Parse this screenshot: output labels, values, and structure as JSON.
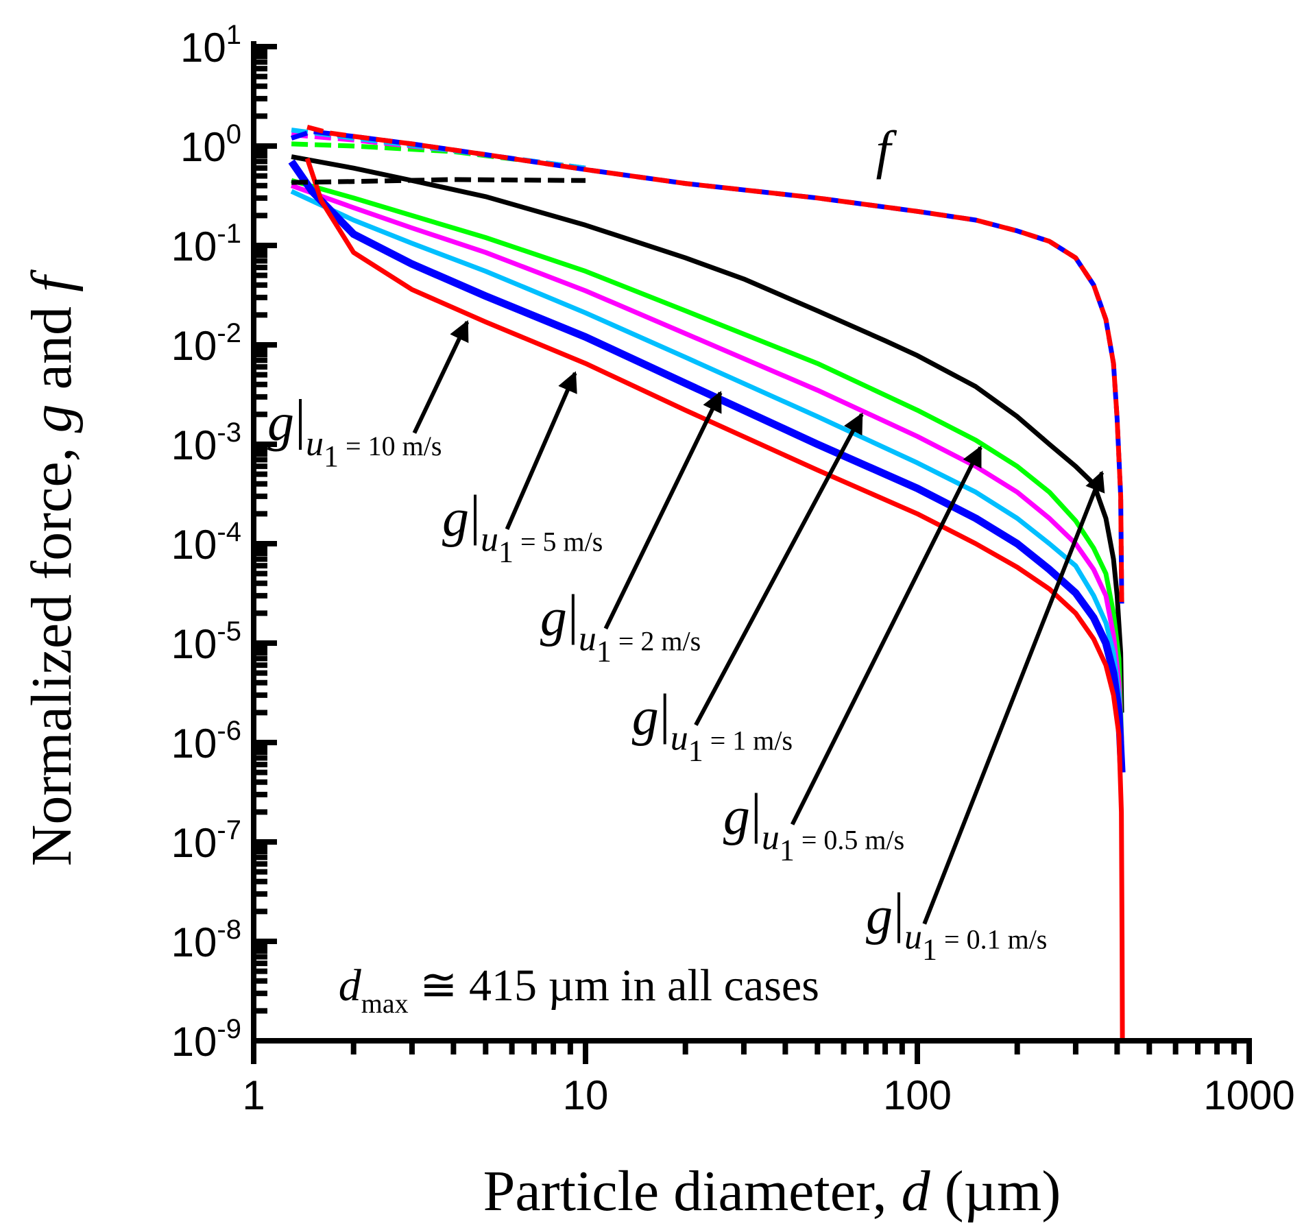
{
  "chart_data": {
    "type": "line",
    "xscale": "log",
    "yscale": "log",
    "xlim": [
      1,
      1000
    ],
    "ylim_exponents": [
      -9,
      1
    ],
    "xlabel": {
      "prefix": "Particle diameter, ",
      "var": "d",
      "suffix": " (µm)"
    },
    "ylabel": {
      "prefix": "Normalized force, ",
      "var1": "g",
      "mid": " and ",
      "var2": "f"
    },
    "x_ticks": [
      {
        "value": 1,
        "label": "1"
      },
      {
        "value": 10,
        "label": "10"
      },
      {
        "value": 100,
        "label": "100"
      },
      {
        "value": 1000,
        "label": "1000"
      }
    ],
    "y_ticks": [
      {
        "exp": 1,
        "base": "10",
        "sup": "1"
      },
      {
        "exp": 0,
        "base": "10",
        "sup": "0"
      },
      {
        "exp": -1,
        "base": "10",
        "sup": "-1"
      },
      {
        "exp": -2,
        "base": "10",
        "sup": "-2"
      },
      {
        "exp": -3,
        "base": "10",
        "sup": "-3"
      },
      {
        "exp": -4,
        "base": "10",
        "sup": "-4"
      },
      {
        "exp": -5,
        "base": "10",
        "sup": "-5"
      },
      {
        "exp": -6,
        "base": "10",
        "sup": "-6"
      },
      {
        "exp": -7,
        "base": "10",
        "sup": "-7"
      },
      {
        "exp": -8,
        "base": "10",
        "sup": "-8"
      },
      {
        "exp": -9,
        "base": "10",
        "sup": "-9"
      }
    ],
    "series": [
      {
        "name": "g (u1 = 0.1 m/s)",
        "style": "solid",
        "color": "#000000",
        "points": [
          [
            1.3,
            0.78
          ],
          [
            2,
            0.6
          ],
          [
            3,
            0.45
          ],
          [
            5,
            0.31
          ],
          [
            10,
            0.16
          ],
          [
            20,
            0.075
          ],
          [
            30,
            0.046
          ],
          [
            50,
            0.022
          ],
          [
            80,
            0.011
          ],
          [
            100,
            0.0078
          ],
          [
            150,
            0.0038
          ],
          [
            200,
            0.0019
          ],
          [
            250,
            0.001
          ],
          [
            300,
            0.0006
          ],
          [
            340,
            0.0004
          ],
          [
            370,
            0.00018
          ],
          [
            390,
            7e-05
          ],
          [
            400,
            3e-05
          ],
          [
            410,
            8e-06
          ],
          [
            413,
            2e-06
          ]
        ]
      },
      {
        "name": "g (u1 = 0.5 m/s)",
        "style": "solid",
        "color": "#00ff00",
        "points": [
          [
            1.3,
            0.45
          ],
          [
            2,
            0.3
          ],
          [
            3,
            0.2
          ],
          [
            5,
            0.12
          ],
          [
            10,
            0.055
          ],
          [
            20,
            0.022
          ],
          [
            50,
            0.0065
          ],
          [
            100,
            0.0022
          ],
          [
            150,
            0.0011
          ],
          [
            200,
            0.0006
          ],
          [
            250,
            0.00033
          ],
          [
            300,
            0.00017
          ],
          [
            340,
            9e-05
          ],
          [
            370,
            5e-05
          ],
          [
            390,
            2e-05
          ],
          [
            405,
            7e-06
          ],
          [
            413,
            1e-06
          ]
        ]
      },
      {
        "name": "g (u1 = 1 m/s)",
        "style": "solid",
        "color": "#ff00ff",
        "points": [
          [
            1.3,
            0.4
          ],
          [
            2,
            0.24
          ],
          [
            3,
            0.15
          ],
          [
            5,
            0.085
          ],
          [
            10,
            0.035
          ],
          [
            20,
            0.013
          ],
          [
            50,
            0.0035
          ],
          [
            100,
            0.0012
          ],
          [
            150,
            0.0006
          ],
          [
            200,
            0.00033
          ],
          [
            250,
            0.00018
          ],
          [
            300,
            0.0001
          ],
          [
            340,
            5.5e-05
          ],
          [
            370,
            3e-05
          ],
          [
            390,
            1.2e-05
          ],
          [
            405,
            4e-06
          ],
          [
            413,
            1e-06
          ]
        ]
      },
      {
        "name": "g (u1 = 2 m/s)",
        "style": "solid",
        "color": "#00bfff",
        "points": [
          [
            1.3,
            0.35
          ],
          [
            2,
            0.18
          ],
          [
            3,
            0.105
          ],
          [
            5,
            0.055
          ],
          [
            10,
            0.021
          ],
          [
            20,
            0.0075
          ],
          [
            50,
            0.0019
          ],
          [
            100,
            0.00065
          ],
          [
            150,
            0.00033
          ],
          [
            200,
            0.00018
          ],
          [
            250,
            0.0001
          ],
          [
            300,
            6e-05
          ],
          [
            340,
            3e-05
          ],
          [
            370,
            1.6e-05
          ],
          [
            390,
            8e-06
          ],
          [
            405,
            3e-06
          ],
          [
            413,
            8e-07
          ]
        ]
      },
      {
        "name": "g (u1 = 5 m/s)",
        "style": "solid",
        "color": "#0000ff",
        "points": [
          [
            1.3,
            0.7
          ],
          [
            1.5,
            0.35
          ],
          [
            2,
            0.13
          ],
          [
            3,
            0.065
          ],
          [
            5,
            0.031
          ],
          [
            10,
            0.012
          ],
          [
            20,
            0.0041
          ],
          [
            50,
            0.001
          ],
          [
            100,
            0.00036
          ],
          [
            150,
            0.00018
          ],
          [
            200,
            0.0001
          ],
          [
            250,
            5.5e-05
          ],
          [
            300,
            3.2e-05
          ],
          [
            340,
            1.8e-05
          ],
          [
            370,
            1e-05
          ],
          [
            390,
            5e-06
          ],
          [
            405,
            2e-06
          ],
          [
            413,
            5e-07
          ]
        ]
      },
      {
        "name": "g (u1 = 10 m/s)",
        "style": "solid",
        "color": "#ff0000",
        "points": [
          [
            1.45,
            0.75
          ],
          [
            1.6,
            0.28
          ],
          [
            2,
            0.085
          ],
          [
            3,
            0.036
          ],
          [
            5,
            0.017
          ],
          [
            10,
            0.0065
          ],
          [
            20,
            0.0022
          ],
          [
            50,
            0.00055
          ],
          [
            100,
            0.0002
          ],
          [
            150,
            0.0001
          ],
          [
            200,
            5.8e-05
          ],
          [
            250,
            3.5e-05
          ],
          [
            300,
            2e-05
          ],
          [
            340,
            1.1e-05
          ],
          [
            370,
            6e-06
          ],
          [
            390,
            3e-06
          ],
          [
            405,
            1.2e-06
          ],
          [
            412,
            2e-07
          ],
          [
            414,
            1e-08
          ],
          [
            415,
            1e-09
          ]
        ]
      },
      {
        "name": "f (u1 = 0.1 m/s)",
        "style": "dashed",
        "color": "#000000",
        "points": [
          [
            1.3,
            0.43
          ],
          [
            2,
            0.44
          ],
          [
            4,
            0.46
          ],
          [
            10,
            0.45
          ]
        ]
      },
      {
        "name": "f (u1 = 0.5 m/s)",
        "style": "dashed",
        "color": "#00ff00",
        "points": [
          [
            1.3,
            1.05
          ],
          [
            2,
            1.0
          ],
          [
            4,
            0.88
          ],
          [
            10,
            0.6
          ]
        ]
      },
      {
        "name": "f (u1 = 1 m/s)",
        "style": "dashed",
        "color": "#ff00ff",
        "points": [
          [
            1.3,
            1.3
          ],
          [
            2,
            1.15
          ],
          [
            4,
            0.9
          ],
          [
            10,
            0.6
          ]
        ]
      },
      {
        "name": "f (u1 = 2 m/s)",
        "style": "dashed",
        "color": "#00bfff",
        "points": [
          [
            1.3,
            1.45
          ],
          [
            2,
            1.2
          ],
          [
            4,
            0.9
          ],
          [
            10,
            0.6
          ]
        ]
      },
      {
        "name": "f (u1 = 5 m/s)",
        "style": "dashed",
        "color": "#0000ff",
        "points": [
          [
            1.3,
            1.2
          ],
          [
            1.5,
            1.4
          ],
          [
            2,
            1.25
          ],
          [
            3,
            1.05
          ],
          [
            5,
            0.82
          ],
          [
            10,
            0.58
          ],
          [
            20,
            0.42
          ],
          [
            50,
            0.3
          ],
          [
            100,
            0.22
          ],
          [
            150,
            0.18
          ],
          [
            200,
            0.14
          ],
          [
            250,
            0.11
          ],
          [
            300,
            0.075
          ],
          [
            340,
            0.04
          ],
          [
            370,
            0.018
          ],
          [
            390,
            0.0065
          ],
          [
            400,
            0.0018
          ],
          [
            410,
            0.0003
          ],
          [
            413,
            2.5e-05
          ]
        ]
      },
      {
        "name": "f (u1 = 10 m/s)",
        "style": "dashed",
        "color": "#ff0000",
        "points": [
          [
            1.45,
            1.55
          ],
          [
            1.7,
            1.35
          ],
          [
            2,
            1.25
          ],
          [
            3,
            1.05
          ],
          [
            5,
            0.82
          ],
          [
            10,
            0.58
          ],
          [
            20,
            0.42
          ],
          [
            50,
            0.3
          ],
          [
            100,
            0.22
          ],
          [
            150,
            0.18
          ],
          [
            200,
            0.14
          ],
          [
            250,
            0.11
          ],
          [
            300,
            0.075
          ],
          [
            340,
            0.04
          ],
          [
            370,
            0.018
          ],
          [
            390,
            0.0065
          ],
          [
            400,
            0.0018
          ],
          [
            410,
            0.0003
          ],
          [
            413,
            2.5e-05
          ]
        ]
      }
    ],
    "annotations": {
      "f_label": {
        "text": "f",
        "x": 75,
        "y": 0.6
      },
      "dmax": {
        "d": "d",
        "sub": "max",
        "rest": " ≅ 415 µm in all cases",
        "x": 2.9,
        "y": 3e-09
      },
      "arrows": [
        {
          "g": "g",
          "u": "u",
          "one": "1",
          "eq": " = 10 m/s",
          "label_x": 1.1,
          "label_y": 0.0011,
          "tail": [
            3.05,
            0.0013
          ],
          "head": [
            4.4,
            0.017
          ]
        },
        {
          "g": "g",
          "u": "u",
          "one": "1",
          "eq": " = 5 m/s",
          "label_x": 3.7,
          "label_y": 0.00012,
          "tail": [
            5.8,
            0.00014
          ],
          "head": [
            9.3,
            0.0052
          ]
        },
        {
          "g": "g",
          "u": "u",
          "one": "1",
          "eq": " = 2 m/s",
          "label_x": 7.3,
          "label_y": 1.2e-05,
          "tail": [
            11.5,
            1.4e-05
          ],
          "head": [
            25.5,
            0.0033
          ]
        },
        {
          "g": "g",
          "u": "u",
          "one": "1",
          "eq": " = 1 m/s",
          "label_x": 13.8,
          "label_y": 1.2e-06,
          "tail": [
            21.5,
            1.5e-06
          ],
          "head": [
            68,
            0.002
          ]
        },
        {
          "g": "g",
          "u": "u",
          "one": "1",
          "eq": " = 0.5 m/s",
          "label_x": 26,
          "label_y": 1.2e-07,
          "tail": [
            42,
            1.5e-07
          ],
          "head": [
            155,
            0.00093
          ]
        },
        {
          "g": "g",
          "u": "u",
          "one": "1",
          "eq": " = 0.1 m/s",
          "label_x": 70,
          "label_y": 1.2e-08,
          "tail": [
            105,
            1.5e-08
          ],
          "head": [
            360,
            0.00052
          ]
        }
      ]
    }
  }
}
